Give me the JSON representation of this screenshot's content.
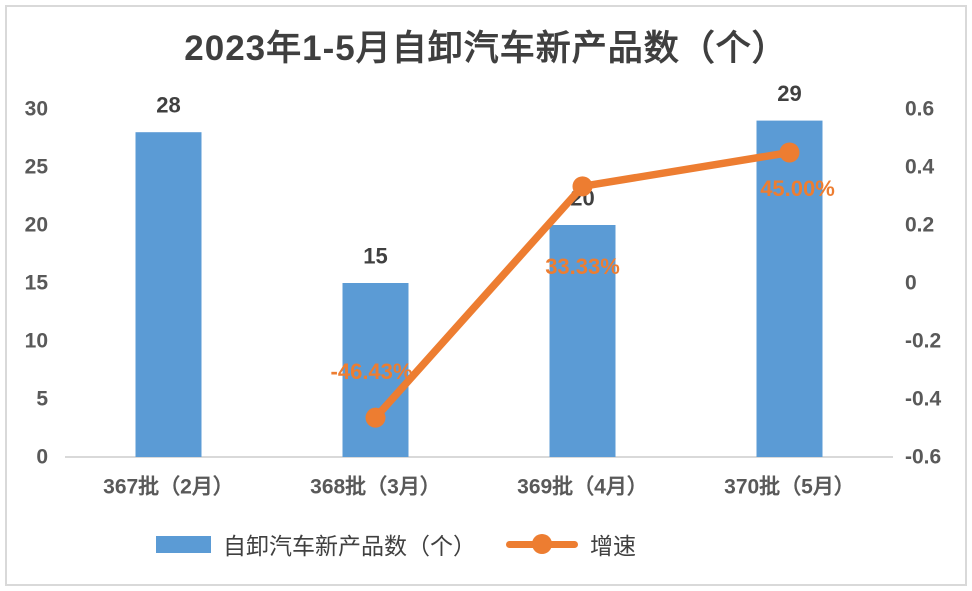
{
  "chart_data": {
    "type": "combo",
    "title": "2023年1-5月自卸汽车新产品数（个）",
    "categories": [
      "367批（2月）",
      "368批（3月）",
      "369批（4月）",
      "370批（5月）"
    ],
    "series": [
      {
        "name": "自卸汽车新产品数（个）",
        "type": "bar",
        "axis": "left",
        "values": [
          28,
          15,
          20,
          29
        ],
        "labels": [
          "28",
          "15",
          "20",
          "29"
        ]
      },
      {
        "name": "增速",
        "type": "line",
        "axis": "right",
        "values": [
          null,
          -0.4643,
          0.3333,
          0.45
        ],
        "labels": [
          null,
          "-46.43%",
          "33.33%",
          "45.00%"
        ]
      }
    ],
    "left_axis": {
      "min": 0,
      "max": 30,
      "ticks": [
        "0",
        "5",
        "10",
        "15",
        "20",
        "25",
        "30"
      ]
    },
    "right_axis": {
      "min": -0.6,
      "max": 0.6,
      "ticks": [
        "-0.6",
        "-0.4",
        "-0.2",
        "0",
        "0.2",
        "0.4",
        "0.6"
      ]
    },
    "legend": [
      {
        "label": "自卸汽车新产品数（个）",
        "swatch": "bar"
      },
      {
        "label": "增速",
        "swatch": "line"
      }
    ],
    "grid": "off",
    "legend_position": "bottom",
    "colors": {
      "bar": "#5B9BD5",
      "line": "#ED7D31",
      "title_text": "#3F3F3F",
      "tick_text": "#595959",
      "category_text": "#595959",
      "bar_label_text": "#404040",
      "line_label_text": "#ED7D31",
      "axis_line": "#D9D9D9",
      "frame_border": "#D9D9D9"
    }
  }
}
